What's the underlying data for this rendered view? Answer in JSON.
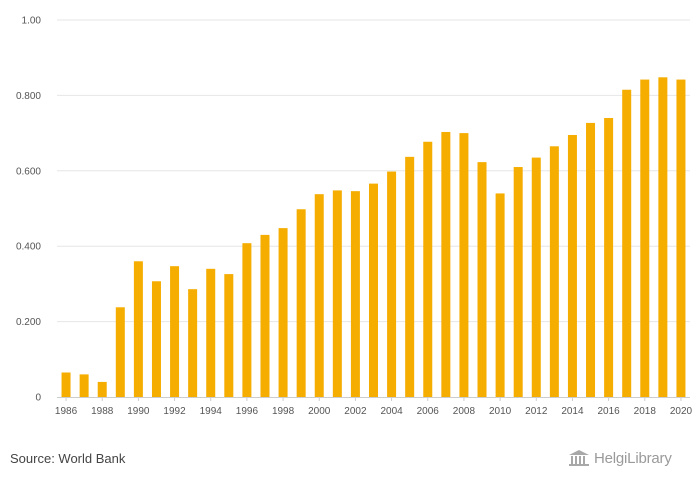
{
  "chart_data": {
    "type": "bar",
    "categories": [
      "1986",
      "1987",
      "1988",
      "1989",
      "1990",
      "1991",
      "1992",
      "1993",
      "1994",
      "1995",
      "1996",
      "1997",
      "1998",
      "1999",
      "2000",
      "2001",
      "2002",
      "2003",
      "2004",
      "2005",
      "2006",
      "2007",
      "2008",
      "2009",
      "2010",
      "2011",
      "2012",
      "2013",
      "2014",
      "2015",
      "2016",
      "2017",
      "2018",
      "2019",
      "2020"
    ],
    "x_tick_labels": [
      "1986",
      "1988",
      "1990",
      "1992",
      "1994",
      "1996",
      "1998",
      "2000",
      "2002",
      "2004",
      "2006",
      "2008",
      "2010",
      "2012",
      "2014",
      "2016",
      "2018",
      "2020"
    ],
    "values": [
      0.065,
      0.06,
      0.04,
      0.238,
      0.36,
      0.307,
      0.347,
      0.286,
      0.34,
      0.326,
      0.408,
      0.43,
      0.448,
      0.498,
      0.538,
      0.548,
      0.546,
      0.566,
      0.598,
      0.637,
      0.677,
      0.703,
      0.7,
      0.623,
      0.54,
      0.61,
      0.635,
      0.665,
      0.695,
      0.727,
      0.74,
      0.815,
      0.842,
      0.848,
      0.842
    ],
    "ylim": [
      0,
      1.0
    ],
    "y_ticks": [
      0,
      0.2,
      0.4,
      0.6,
      0.8,
      1.0
    ],
    "y_tick_labels": [
      "0",
      "0.200",
      "0.400",
      "0.600",
      "0.800",
      "1.00"
    ],
    "grid": true,
    "bar_color": "#f5ad00",
    "grid_color": "#e6e6e6",
    "title": "",
    "xlabel": "",
    "ylabel": ""
  },
  "footer": {
    "source_text": "Source: World Bank",
    "brand_text": "HelgiLibrary"
  }
}
